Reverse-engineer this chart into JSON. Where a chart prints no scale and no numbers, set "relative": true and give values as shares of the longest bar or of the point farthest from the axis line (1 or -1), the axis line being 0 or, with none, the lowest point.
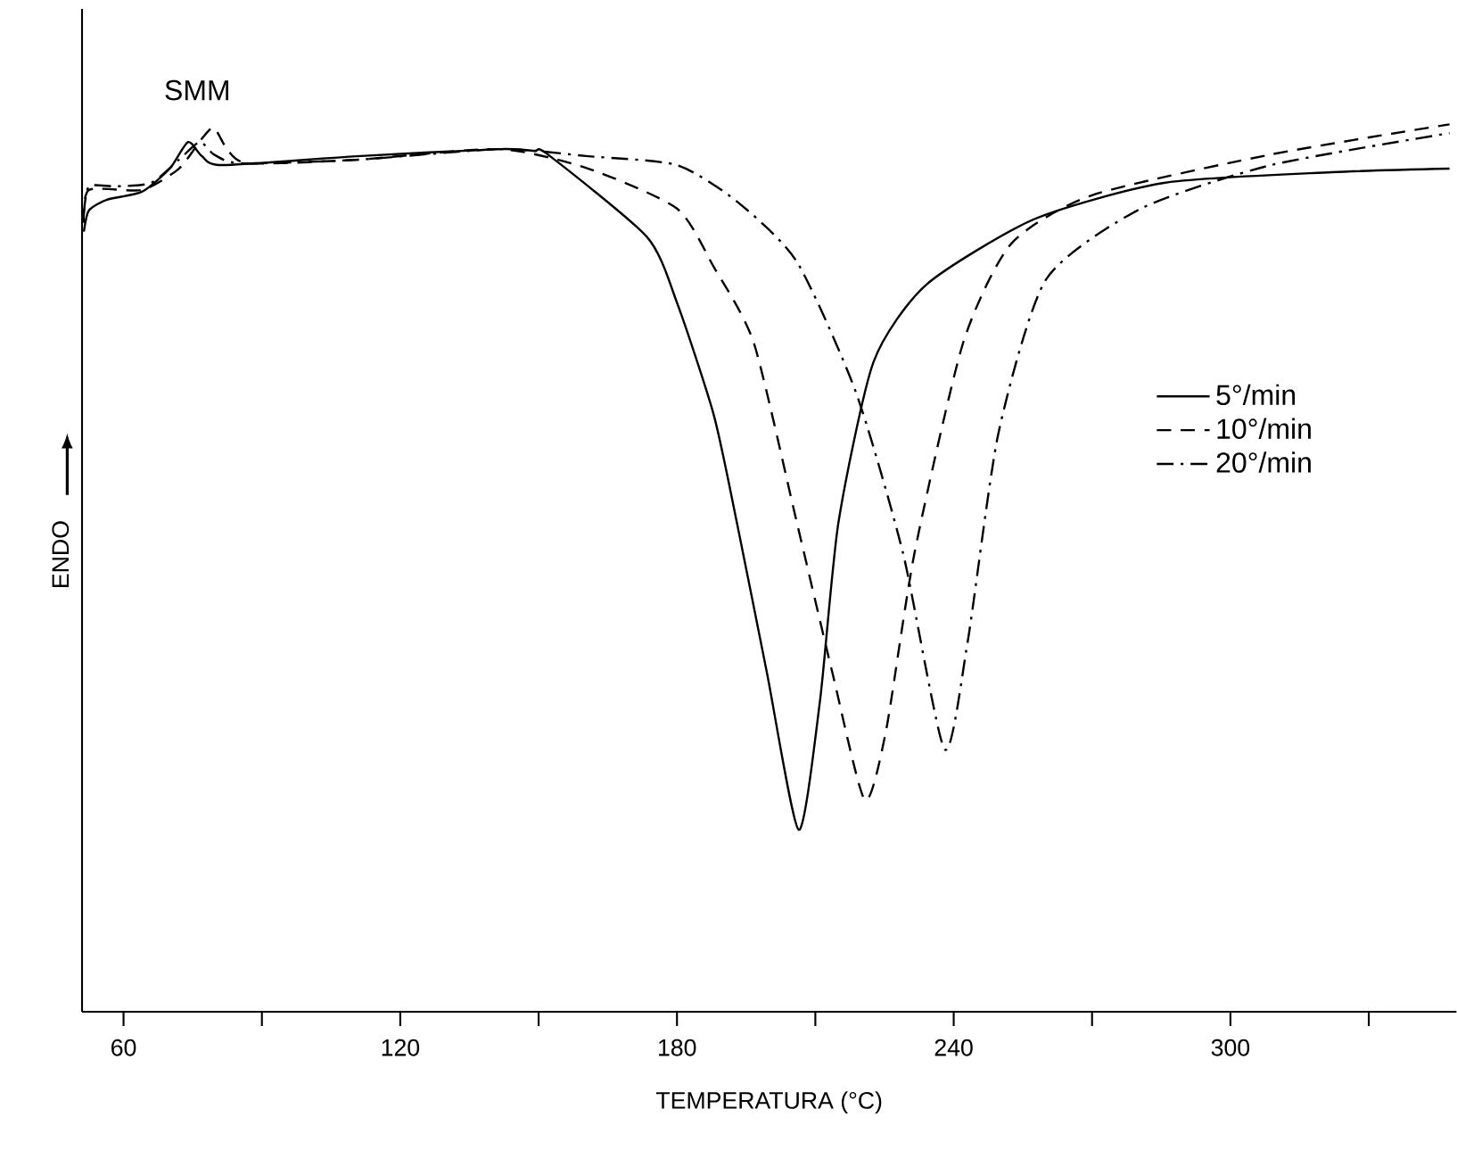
{
  "chart_data": {
    "type": "line",
    "relative": true,
    "xlabel": "TEMPERATURA (°C)",
    "ylabel": "ENDO",
    "xlim": [
      51,
      349
    ],
    "xticks": [
      60,
      {
        "value": 90,
        "label": null
      },
      120,
      {
        "value": 150,
        "label": null
      },
      180,
      {
        "value": 210,
        "label": null
      },
      240,
      {
        "value": 270,
        "label": null
      },
      300,
      {
        "value": 330,
        "label": null
      }
    ],
    "grid": false,
    "legend": "right",
    "marker": "none",
    "annotations": [
      {
        "text": "SMM",
        "x": 76,
        "y": 0.98
      }
    ],
    "series": [
      {
        "name": "5°/min",
        "color": "#000000",
        "line_style": "solid",
        "x": [
          51.4,
          52.5,
          56.4,
          64,
          70,
          74,
          77,
          81.5,
          110.5,
          141.5,
          149,
          152,
          173.5,
          180,
          188,
          193,
          199.5,
          206.4,
          211,
          215,
          222.6,
          234,
          257.4,
          285.6,
          322,
          347.5
        ],
        "values": [
          0.879,
          0.903,
          0.915,
          0.924,
          0.95,
          0.98,
          0.964,
          0.954,
          0.964,
          0.972,
          0.97,
          0.966,
          0.873,
          0.799,
          0.672,
          0.551,
          0.382,
          0.205,
          0.35,
          0.551,
          0.732,
          0.819,
          0.893,
          0.934,
          0.946,
          0.95
        ]
      },
      {
        "name": "10°/min",
        "color": "#000000",
        "line_style": "dashed",
        "x": [
          51.4,
          52.5,
          64,
          72,
          77,
          79.6,
          82.7,
          87.3,
          110.5,
          141.5,
          160.8,
          180,
          188,
          196.7,
          206,
          213.7,
          220.7,
          225.3,
          231.5,
          242,
          252.4,
          270,
          308.8,
          347.5
        ],
        "values": [
          0.889,
          0.926,
          0.926,
          0.95,
          0.984,
          0.996,
          0.97,
          0.956,
          0.96,
          0.972,
          0.95,
          0.905,
          0.839,
          0.753,
          0.551,
          0.382,
          0.239,
          0.316,
          0.517,
          0.753,
          0.865,
          0.92,
          0.966,
          1.0
        ]
      },
      {
        "name": "20°/min",
        "color": "#000000",
        "line_style": "dashdotted",
        "x": [
          51.4,
          52.5,
          58.3,
          66,
          72,
          76.5,
          79.6,
          85.4,
          110.5,
          141.5,
          160.8,
          180,
          193,
          206,
          218.8,
          229,
          238,
          243,
          249.7,
          260,
          280.6,
          308.8,
          347.5
        ],
        "values": [
          0.899,
          0.93,
          0.93,
          0.934,
          0.96,
          0.98,
          0.966,
          0.956,
          0.96,
          0.972,
          0.964,
          0.954,
          0.913,
          0.845,
          0.698,
          0.517,
          0.296,
          0.416,
          0.652,
          0.825,
          0.905,
          0.954,
          0.99
        ]
      }
    ]
  }
}
